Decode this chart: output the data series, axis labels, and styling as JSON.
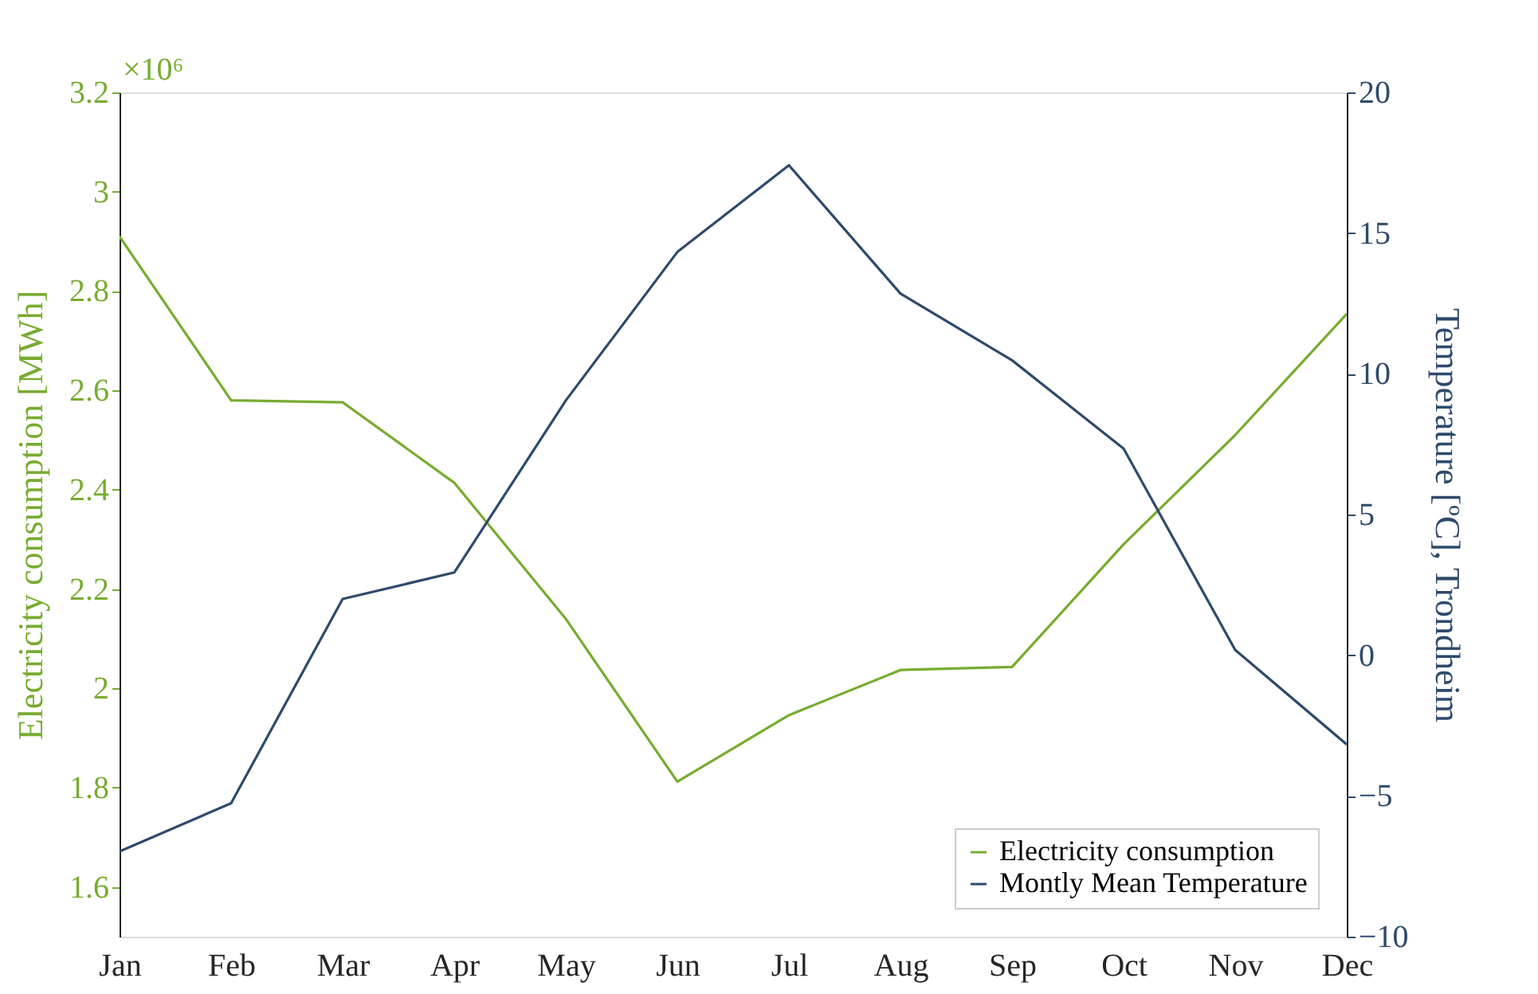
{
  "chart_data": {
    "type": "line",
    "categories": [
      "Jan",
      "Feb",
      "Mar",
      "Apr",
      "May",
      "Jun",
      "Jul",
      "Aug",
      "Sep",
      "Oct",
      "Nov",
      "Dec"
    ],
    "series": [
      {
        "name": "Electricity consumption",
        "color": "#77ac30",
        "axis": "y",
        "values": [
          2.91,
          2.58,
          2.576,
          2.414,
          2.14,
          1.812,
          1.946,
          2.037,
          2.043,
          2.29,
          2.51,
          2.754
        ]
      },
      {
        "name": "Montly Mean Temperature",
        "color": "#2e4a6b",
        "axis": "y2",
        "values": [
          -6.97,
          -5.26,
          2.0,
          2.94,
          9.05,
          14.33,
          17.41,
          12.85,
          10.48,
          7.34,
          0.19,
          -3.17
        ]
      }
    ],
    "ylabel": "Electricity consumption [MWh]",
    "y2label": "Temperature [ºC], Trondheim",
    "ylim": [
      1.5,
      3.2
    ],
    "yticks": [
      1.6,
      1.8,
      2,
      2.2,
      2.4,
      2.6,
      2.8,
      3,
      3.2
    ],
    "y2lim": [
      -10,
      20
    ],
    "y2ticks": [
      -10,
      -5,
      0,
      5,
      10,
      15,
      20
    ],
    "annotations": [
      "×10⁶"
    ],
    "legend": "bottom right",
    "line_style": "solid",
    "grid": false
  }
}
